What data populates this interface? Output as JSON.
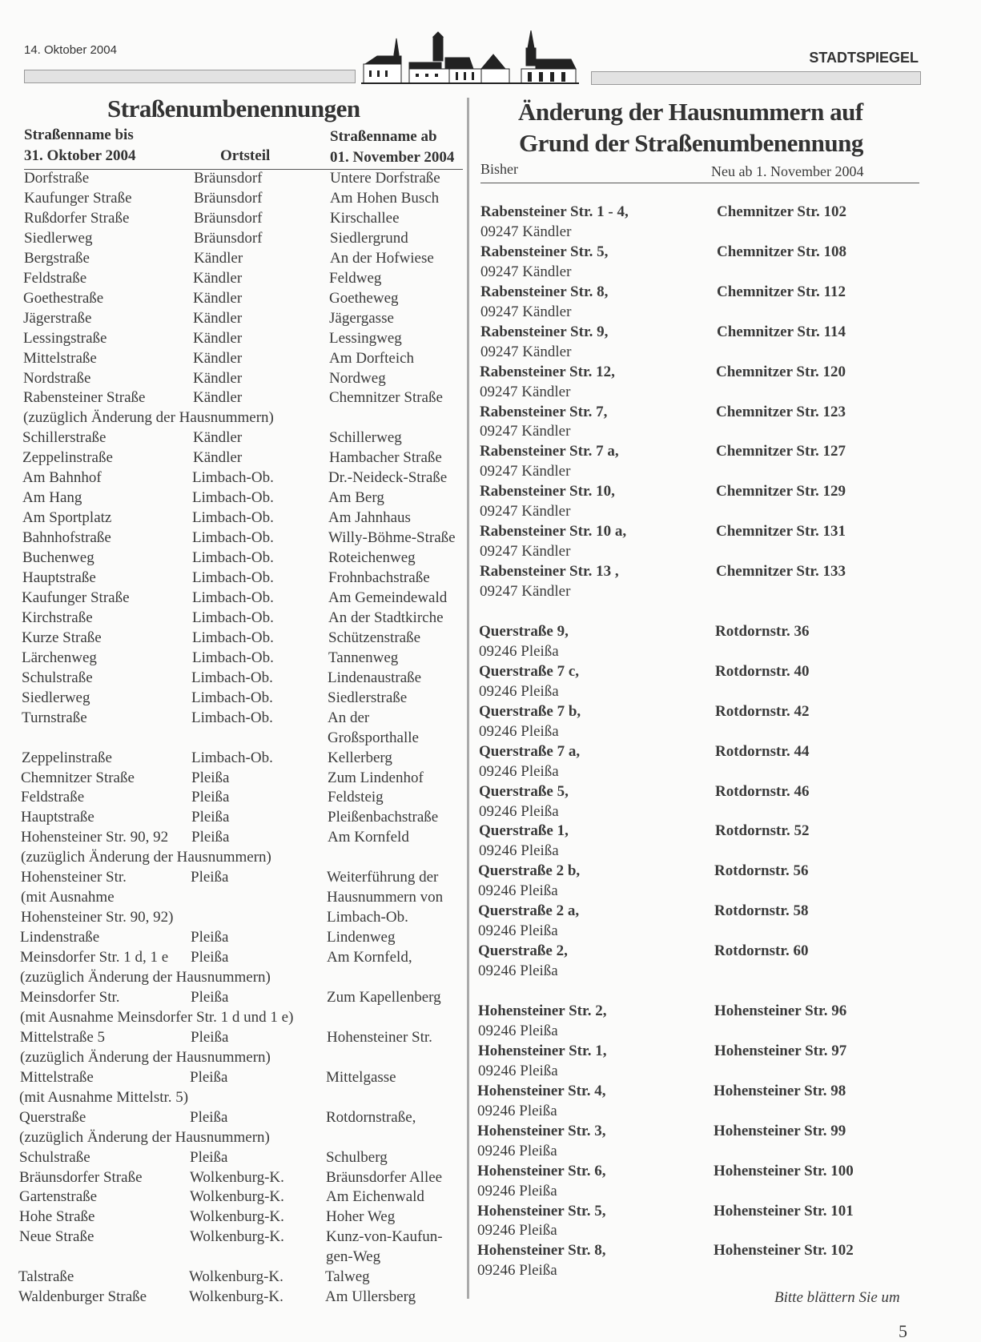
{
  "header": {
    "date": "14. Oktober 2004",
    "publication": "STADTSPIEGEL",
    "logo": "town-skyline-logo"
  },
  "left": {
    "title": "Straßenumbenennungen",
    "col_old_line1": "Straßenname bis",
    "col_old_line2": "31. Oktober 2004",
    "col_district": "Ortsteil",
    "col_new_line1": "Straßenname ab",
    "col_new_line2": "01. November 2004",
    "rows": [
      [
        "Dorfstraße",
        "Bräunsdorf",
        "Untere Dorfstraße"
      ],
      [
        "Kaufunger Straße",
        "Bräunsdorf",
        "Am Hohen Busch"
      ],
      [
        "Rußdorfer Straße",
        "Bräunsdorf",
        "Kirschallee"
      ],
      [
        "Siedlerweg",
        "Bräunsdorf",
        "Siedlergrund"
      ],
      [
        "Bergstraße",
        "Kändler",
        "An der Hofwiese"
      ],
      [
        "Feldstraße",
        "Kändler",
        "Feldweg"
      ],
      [
        "Goethestraße",
        "Kändler",
        "Goetheweg"
      ],
      [
        "Jägerstraße",
        "Kändler",
        "Jägergasse"
      ],
      [
        "Lessingstraße",
        "Kändler",
        "Lessingweg"
      ],
      [
        "Mittelstraße",
        "Kändler",
        "Am Dorfteich"
      ],
      [
        "Nordstraße",
        "Kändler",
        "Nordweg"
      ],
      [
        "Rabensteiner Straße",
        "Kändler",
        "Chemnitzer Straße"
      ],
      [
        "(zuzüglich Änderung der Hausnummern)",
        "",
        ""
      ],
      [
        "Schillerstraße",
        "Kändler",
        "Schillerweg"
      ],
      [
        "Zeppelinstraße",
        "Kändler",
        "Hambacher Straße"
      ],
      [
        "Am Bahnhof",
        "Limbach-Ob.",
        "Dr.-Neideck-Straße"
      ],
      [
        "Am Hang",
        "Limbach-Ob.",
        "Am Berg"
      ],
      [
        "Am Sportplatz",
        "Limbach-Ob.",
        "Am Jahnhaus"
      ],
      [
        "Bahnhofstraße",
        "Limbach-Ob.",
        "Willy-Böhme-Straße"
      ],
      [
        "Buchenweg",
        "Limbach-Ob.",
        "Roteichenweg"
      ],
      [
        "Hauptstraße",
        "Limbach-Ob.",
        "Frohnbachstraße"
      ],
      [
        "Kaufunger Straße",
        "Limbach-Ob.",
        "Am Gemeindewald"
      ],
      [
        "Kirchstraße",
        "Limbach-Ob.",
        "An der Stadtkirche"
      ],
      [
        "Kurze Straße",
        "Limbach-Ob.",
        "Schützenstraße"
      ],
      [
        "Lärchenweg",
        "Limbach-Ob.",
        "Tannenweg"
      ],
      [
        "Schulstraße",
        "Limbach-Ob.",
        "Lindenaustraße"
      ],
      [
        "Siedlerweg",
        "Limbach-Ob.",
        "Siedlerstraße"
      ],
      [
        "Turnstraße",
        "Limbach-Ob.",
        "An der"
      ],
      [
        "",
        "",
        "Großsporthalle"
      ],
      [
        "Zeppelinstraße",
        "Limbach-Ob.",
        "Kellerberg"
      ],
      [
        "Chemnitzer Straße",
        "Pleißa",
        "Zum Lindenhof"
      ],
      [
        "Feldstraße",
        "Pleißa",
        "Feldsteig"
      ],
      [
        "Hauptstraße",
        "Pleißa",
        "Pleißenbachstraße"
      ],
      [
        "Hohensteiner Str. 90, 92",
        "Pleißa",
        "Am Kornfeld"
      ],
      [
        "(zuzüglich Änderung der Hausnummern)",
        "",
        ""
      ],
      [
        "Hohensteiner Str.",
        "Pleißa",
        "Weiterführung der"
      ],
      [
        "(mit Ausnahme",
        "",
        "Hausnummern von"
      ],
      [
        "Hohensteiner Str. 90, 92)",
        "",
        "Limbach-Ob."
      ],
      [
        "Lindenstraße",
        "Pleißa",
        "Lindenweg"
      ],
      [
        "Meinsdorfer Str.  1 d, 1 e",
        "Pleißa",
        "Am Kornfeld,"
      ],
      [
        "(zuzüglich Änderung der Hausnummern)",
        "",
        ""
      ],
      [
        "Meinsdorfer Str.",
        "Pleißa",
        "Zum Kapellenberg"
      ],
      [
        "(mit Ausnahme Meinsdorfer Str. 1 d und 1 e)",
        "",
        ""
      ],
      [
        "Mittelstraße 5",
        "Pleißa",
        "Hohensteiner Str."
      ],
      [
        "(zuzüglich Änderung der Hausnummern)",
        "",
        ""
      ],
      [
        "Mittelstraße",
        "Pleißa",
        "Mittelgasse"
      ],
      [
        "(mit Ausnahme Mittelstr. 5)",
        "",
        ""
      ],
      [
        "Querstraße",
        "Pleißa",
        "Rotdornstraße,"
      ],
      [
        "(zuzüglich Änderung der Hausnummern)",
        "",
        ""
      ],
      [
        "Schulstraße",
        "Pleißa",
        "Schulberg"
      ],
      [
        "Bräunsdorfer Straße",
        "Wolkenburg-K.",
        "Bräunsdorfer Allee"
      ],
      [
        "Gartenstraße",
        "Wolkenburg-K.",
        "Am Eichenwald"
      ],
      [
        "Hohe Straße",
        "Wolkenburg-K.",
        "Hoher Weg"
      ],
      [
        "Neue Straße",
        "Wolkenburg-K.",
        "Kunz-von-Kaufun-"
      ],
      [
        "",
        "",
        "gen-Weg"
      ],
      [
        "Talstraße",
        "Wolkenburg-K.",
        "Talweg"
      ],
      [
        "Waldenburger Straße",
        "Wolkenburg-K.",
        "Am Ullersberg"
      ]
    ]
  },
  "right": {
    "title_line1": "Änderung der Hausnummern auf",
    "title_line2": "Grund der Straßenumbenennung",
    "col_old": "Bisher",
    "col_new": "Neu ab 1. November 2004",
    "groups": [
      [
        [
          "Rabensteiner Str. 1 - 4,",
          "09247 Kändler",
          "Chemnitzer Str. 102"
        ],
        [
          "Rabensteiner Str. 5,",
          "09247 Kändler",
          "Chemnitzer Str. 108"
        ],
        [
          "Rabensteiner Str. 8,",
          "09247 Kändler",
          "Chemnitzer Str. 112"
        ],
        [
          "Rabensteiner Str. 9,",
          "09247 Kändler",
          "Chemnitzer Str. 114"
        ],
        [
          "Rabensteiner Str. 12,",
          "09247 Kändler",
          "Chemnitzer Str. 120"
        ],
        [
          "Rabensteiner Str. 7,",
          "09247 Kändler",
          "Chemnitzer Str. 123"
        ],
        [
          "Rabensteiner Str. 7 a,",
          "09247 Kändler",
          "Chemnitzer Str. 127"
        ],
        [
          "Rabensteiner Str. 10,",
          "09247 Kändler",
          "Chemnitzer Str. 129"
        ],
        [
          "Rabensteiner Str. 10 a,",
          "09247 Kändler",
          "Chemnitzer Str. 131"
        ],
        [
          "Rabensteiner Str. 13 ,",
          "09247 Kändler",
          "Chemnitzer Str. 133"
        ]
      ],
      [
        [
          "Querstraße 9,",
          "09246 Pleißa",
          "Rotdornstr. 36"
        ],
        [
          "Querstraße 7 c,",
          "09246 Pleißa",
          "Rotdornstr. 40"
        ],
        [
          "Querstraße 7 b,",
          "09246 Pleißa",
          "Rotdornstr. 42"
        ],
        [
          "Querstraße 7 a,",
          "09246 Pleißa",
          "Rotdornstr. 44"
        ],
        [
          "Querstraße 5,",
          "09246 Pleißa",
          "Rotdornstr. 46"
        ],
        [
          "Querstraße 1,",
          "09246 Pleißa",
          "Rotdornstr. 52"
        ],
        [
          "Querstraße 2 b,",
          "09246 Pleißa",
          "Rotdornstr. 56"
        ],
        [
          "Querstraße 2 a,",
          "09246 Pleißa",
          "Rotdornstr. 58"
        ],
        [
          "Querstraße 2,",
          "09246 Pleißa",
          "Rotdornstr. 60"
        ]
      ],
      [
        [
          "Hohensteiner Str. 2,",
          "09246 Pleißa",
          "Hohensteiner Str. 96"
        ],
        [
          "Hohensteiner Str. 1,",
          "09246 Pleißa",
          "Hohensteiner Str. 97"
        ],
        [
          "Hohensteiner Str. 4,",
          "09246 Pleißa",
          "Hohensteiner Str. 98"
        ],
        [
          "Hohensteiner Str. 3,",
          "09246 Pleißa",
          "Hohensteiner Str. 99"
        ],
        [
          "Hohensteiner Str. 6,",
          "09246 Pleißa",
          "Hohensteiner Str. 100"
        ],
        [
          "Hohensteiner Str. 5,",
          "09246 Pleißa",
          "Hohensteiner Str. 101"
        ],
        [
          "Hohensteiner Str. 8,",
          "09246 Pleißa",
          "Hohensteiner Str. 102"
        ]
      ]
    ]
  },
  "footer": {
    "continue_note": "Bitte blättern Sie um",
    "page_number": "5"
  }
}
